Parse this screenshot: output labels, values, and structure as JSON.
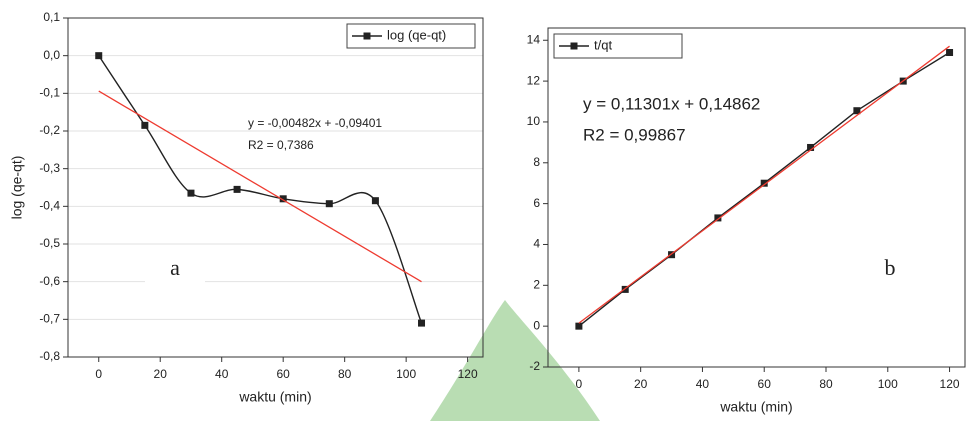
{
  "chart_data": [
    {
      "type": "line",
      "panel": "a",
      "ylabel": "log (qe-qt)",
      "xlabel": "waktu (min)",
      "xlim": [
        -10,
        125
      ],
      "ylim": [
        -0.8,
        0.1
      ],
      "xticks": [
        0,
        20,
        40,
        60,
        80,
        100,
        120
      ],
      "yticks": [
        {
          "value": 0.1,
          "label": "0,1"
        },
        {
          "value": 0,
          "label": "0,0"
        },
        {
          "value": -0.1,
          "label": "-0,1"
        },
        {
          "value": -0.2,
          "label": "-0,2"
        },
        {
          "value": -0.3,
          "label": "-0,3"
        },
        {
          "value": -0.4,
          "label": "-0,4"
        },
        {
          "value": -0.5,
          "label": "-0,5"
        },
        {
          "value": -0.6,
          "label": "-0,6"
        },
        {
          "value": -0.7,
          "label": "-0,7"
        },
        {
          "value": -0.8,
          "label": "-0,8"
        }
      ],
      "grid": true,
      "legend": "upper right",
      "annotations": [
        "y = -0,00482x + -0,09401",
        "R2 = 0,7386"
      ],
      "series": [
        {
          "name": "log (qe-qt)",
          "color": "#222222",
          "x": [
            0,
            15,
            30,
            45,
            60,
            75,
            90,
            105
          ],
          "values": [
            0,
            -0.185,
            -0.365,
            -0.355,
            -0.38,
            -0.393,
            -0.385,
            -0.71
          ]
        },
        {
          "color": "#ee3b30",
          "x": [
            0,
            105
          ],
          "values": [
            -0.094,
            -0.6
          ]
        }
      ]
    },
    {
      "type": "line",
      "panel": "b",
      "xlabel": "waktu (min)",
      "xlim": [
        -10,
        125
      ],
      "ylim": [
        -2,
        14.6
      ],
      "xticks": [
        0,
        20,
        40,
        60,
        80,
        100,
        120
      ],
      "yticks": [
        -2,
        0,
        2,
        4,
        6,
        8,
        10,
        12,
        14
      ],
      "grid": false,
      "legend": "upper left",
      "annotations": [
        "y = 0,11301x + 0,14862",
        "R2 = 0,99867"
      ],
      "series": [
        {
          "name": "t/qt",
          "color": "#222222",
          "x": [
            0,
            15,
            30,
            45,
            60,
            75,
            90,
            105,
            120
          ],
          "values": [
            0,
            1.8,
            3.5,
            5.3,
            7.0,
            8.75,
            10.55,
            12.0,
            13.4
          ]
        },
        {
          "color": "#ee3b30",
          "x": [
            0,
            120
          ],
          "values": [
            0.149,
            13.71
          ]
        }
      ]
    }
  ]
}
